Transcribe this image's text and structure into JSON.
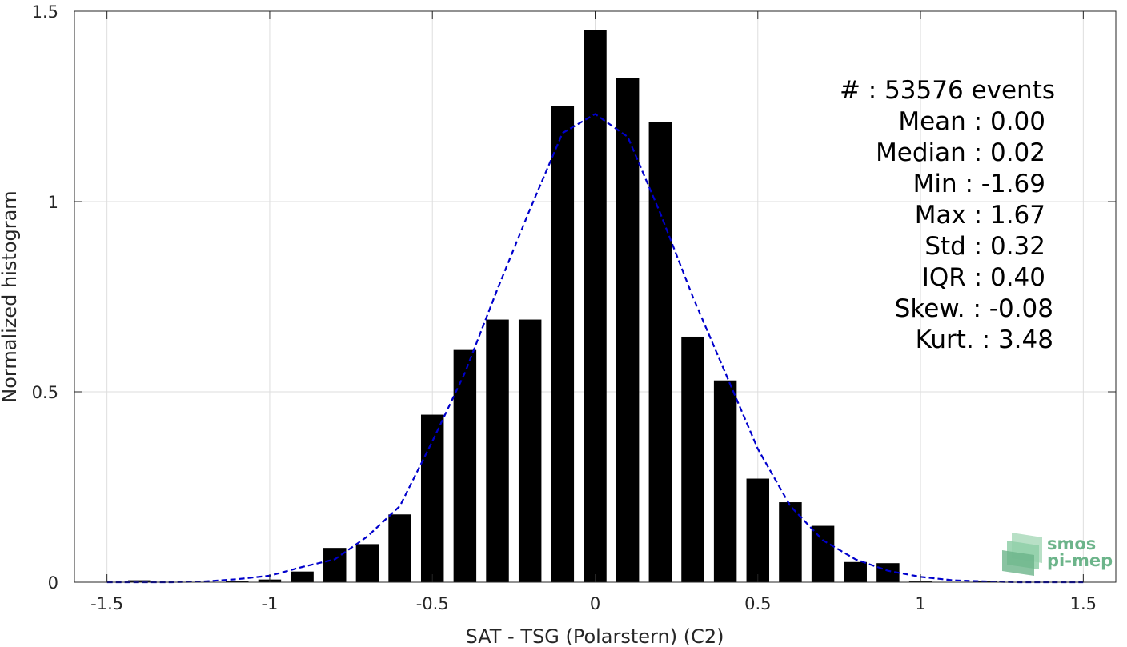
{
  "chart_data": {
    "type": "bar",
    "xlabel": "SAT - TSG (Polarstern) (C2)",
    "ylabel": "Normalized histogram",
    "xlim": [
      -1.6,
      1.6
    ],
    "ylim": [
      0,
      1.5
    ],
    "x_ticks": [
      -1.5,
      -1,
      -0.5,
      0,
      0.5,
      1,
      1.5
    ],
    "x_tick_labels": [
      "-1.5",
      "-1",
      "-0.5",
      "0",
      "0.5",
      "1",
      "1.5"
    ],
    "y_ticks": [
      0,
      0.5,
      1,
      1.5
    ],
    "y_tick_labels": [
      "0",
      "0.5",
      "1",
      "1.5"
    ],
    "grid": true,
    "bar_width": 0.07,
    "bar_color": "#000000",
    "bins": [
      -1.4,
      -1.3,
      -1.2,
      -1.1,
      -1.0,
      -0.9,
      -0.8,
      -0.7,
      -0.6,
      -0.5,
      -0.4,
      -0.3,
      -0.2,
      -0.1,
      0.0,
      0.1,
      0.2,
      0.3,
      0.4,
      0.5,
      0.6,
      0.7,
      0.8,
      0.9,
      1.0,
      1.1,
      1.2
    ],
    "values": [
      0.005,
      0.001,
      0.001,
      0.004,
      0.007,
      0.028,
      0.09,
      0.1,
      0.178,
      0.44,
      0.61,
      0.69,
      0.69,
      1.25,
      1.45,
      1.325,
      1.21,
      0.645,
      0.53,
      0.272,
      0.21,
      0.148,
      0.053,
      0.05,
      0.002,
      0.001,
      0.003
    ],
    "fit_curve": {
      "type": "gaussian",
      "color": "#0000cc",
      "style": "dashed",
      "x": [
        -1.5,
        -1.4,
        -1.3,
        -1.2,
        -1.1,
        -1.0,
        -0.9,
        -0.8,
        -0.7,
        -0.6,
        -0.5,
        -0.4,
        -0.3,
        -0.2,
        -0.1,
        0.0,
        0.1,
        0.2,
        0.3,
        0.4,
        0.5,
        0.6,
        0.7,
        0.8,
        0.9,
        1.0,
        1.1,
        1.2,
        1.3,
        1.4,
        1.5
      ],
      "y": [
        0.0,
        0.0,
        0.0,
        0.002,
        0.008,
        0.017,
        0.04,
        0.06,
        0.12,
        0.2,
        0.37,
        0.55,
        0.77,
        0.98,
        1.18,
        1.23,
        1.17,
        0.97,
        0.75,
        0.55,
        0.35,
        0.2,
        0.11,
        0.06,
        0.03,
        0.014,
        0.005,
        0.002,
        0.0,
        0.0,
        0.0
      ]
    },
    "annotations": [
      "#  : 53576 events",
      "Mean : 0.00",
      "Median : 0.02",
      "Min : -1.69",
      "Max : 1.67",
      "Std : 0.32",
      "IQR : 0.40",
      "Skew. : -0.08",
      "Kurt. : 3.48"
    ]
  },
  "logo": {
    "line1": "smos",
    "line2": "pi-mep",
    "color": "#6cb48a"
  }
}
